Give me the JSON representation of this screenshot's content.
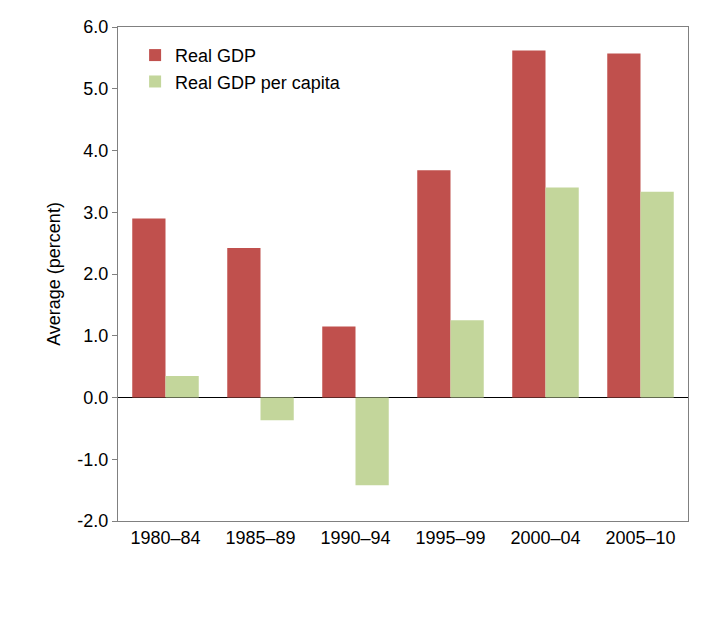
{
  "chart_data": {
    "type": "bar",
    "categories": [
      "1980–84",
      "1985–89",
      "1990–94",
      "1995–99",
      "2000–04",
      "2005–10"
    ],
    "series": [
      {
        "name": "Real GDP",
        "color": "#c0504d",
        "values": [
          2.9,
          2.42,
          1.15,
          3.68,
          5.62,
          5.57
        ]
      },
      {
        "name": "Real GDP per capita",
        "color": "#c3d69b",
        "values": [
          0.35,
          -0.37,
          -1.42,
          1.25,
          3.4,
          3.33
        ]
      }
    ],
    "y_label": "Average (percent)",
    "ylim": [
      -2,
      6
    ],
    "yticks": [
      {
        "value": -2,
        "label": "-2.0"
      },
      {
        "value": -1,
        "label": "-1.0"
      },
      {
        "value": 0,
        "label": "0.0"
      },
      {
        "value": 1,
        "label": "1.0"
      },
      {
        "value": 2,
        "label": "2.0"
      },
      {
        "value": 3,
        "label": "3.0"
      },
      {
        "value": 4,
        "label": "4.0"
      },
      {
        "value": 5,
        "label": "5.0"
      },
      {
        "value": 6,
        "label": "6.0"
      }
    ],
    "grid": false,
    "legend": "top-left"
  }
}
